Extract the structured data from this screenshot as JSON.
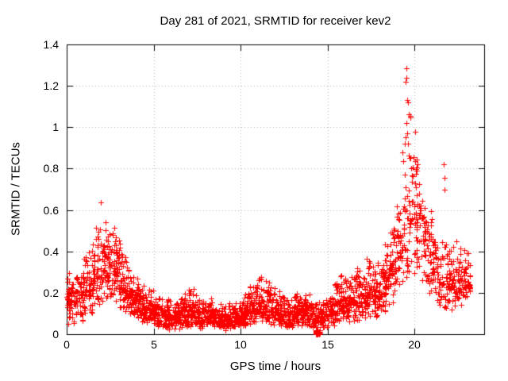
{
  "chart_data": {
    "type": "scatter",
    "title": "Day 281 of 2021, SRMTID for receiver kev2",
    "xlabel": "GPS time / hours",
    "ylabel": "SRMTID / TECUs",
    "xlim": [
      0,
      24
    ],
    "ylim": [
      0,
      1.4
    ],
    "xticks": [
      0,
      5,
      10,
      15,
      20
    ],
    "xtick_labels": [
      "0",
      "5",
      "10",
      "15",
      "20"
    ],
    "yticks": [
      0,
      0.2,
      0.4,
      0.6,
      0.8,
      1.0,
      1.2,
      1.4
    ],
    "ytick_labels": [
      "0",
      "0.2",
      "0.4",
      "0.6",
      "0.8",
      "1",
      "1.2",
      "1.4"
    ],
    "grid": "dotted",
    "legend": "none",
    "marker": "plus",
    "colors": {
      "points": "#ff0000",
      "grid": "#b0b0b0",
      "axis": "#000000",
      "background": "#ffffff"
    },
    "bin_hours": 0.5,
    "data_x_max": 23.2,
    "bins_format": [
      "hour_start",
      "y_min",
      "y_max",
      "num_points"
    ],
    "bins": [
      [
        0.0,
        0.04,
        0.3,
        58
      ],
      [
        0.5,
        0.05,
        0.35,
        58
      ],
      [
        1.0,
        0.08,
        0.42,
        58
      ],
      [
        1.5,
        0.12,
        0.55,
        58
      ],
      [
        2.0,
        0.15,
        0.62,
        60
      ],
      [
        2.5,
        0.15,
        0.57,
        60
      ],
      [
        3.0,
        0.1,
        0.46,
        58
      ],
      [
        3.5,
        0.08,
        0.35,
        58
      ],
      [
        4.0,
        0.06,
        0.28,
        58
      ],
      [
        4.5,
        0.05,
        0.24,
        58
      ],
      [
        5.0,
        0.03,
        0.2,
        58
      ],
      [
        5.5,
        0.02,
        0.18,
        58
      ],
      [
        6.0,
        0.02,
        0.17,
        58
      ],
      [
        6.5,
        0.03,
        0.2,
        58
      ],
      [
        7.0,
        0.03,
        0.24,
        58
      ],
      [
        7.5,
        0.03,
        0.19,
        58
      ],
      [
        8.0,
        0.03,
        0.18,
        58
      ],
      [
        8.5,
        0.02,
        0.16,
        58
      ],
      [
        9.0,
        0.02,
        0.15,
        58
      ],
      [
        9.5,
        0.03,
        0.18,
        58
      ],
      [
        10.0,
        0.04,
        0.2,
        58
      ],
      [
        10.5,
        0.05,
        0.28,
        58
      ],
      [
        11.0,
        0.06,
        0.3,
        58
      ],
      [
        11.5,
        0.04,
        0.27,
        58
      ],
      [
        12.0,
        0.04,
        0.22,
        58
      ],
      [
        12.5,
        0.03,
        0.18,
        58
      ],
      [
        13.0,
        0.04,
        0.22,
        58
      ],
      [
        13.5,
        0.04,
        0.2,
        58
      ],
      [
        14.0,
        0.03,
        0.18,
        54
      ],
      [
        14.5,
        0.02,
        0.16,
        54
      ],
      [
        15.0,
        0.03,
        0.26,
        56
      ],
      [
        15.5,
        0.06,
        0.31,
        56
      ],
      [
        16.0,
        0.05,
        0.28,
        56
      ],
      [
        16.5,
        0.06,
        0.38,
        56
      ],
      [
        17.0,
        0.08,
        0.42,
        56
      ],
      [
        17.5,
        0.06,
        0.36,
        56
      ],
      [
        18.0,
        0.1,
        0.46,
        56
      ],
      [
        18.5,
        0.15,
        0.62,
        54
      ],
      [
        19.0,
        0.2,
        0.78,
        50
      ],
      [
        19.5,
        0.3,
        1.25,
        46
      ],
      [
        20.0,
        0.28,
        0.82,
        50
      ],
      [
        20.5,
        0.2,
        0.72,
        50
      ],
      [
        21.0,
        0.15,
        0.55,
        48
      ],
      [
        21.5,
        0.12,
        0.5,
        46
      ],
      [
        22.0,
        0.1,
        0.45,
        46
      ],
      [
        22.5,
        0.12,
        0.48,
        46
      ],
      [
        23.0,
        0.15,
        0.42,
        20
      ]
    ],
    "outliers": [
      [
        1.97,
        0.637
      ],
      [
        19.55,
        1.285
      ],
      [
        19.52,
        1.24
      ],
      [
        19.5,
        1.22
      ],
      [
        19.56,
        1.13
      ],
      [
        19.6,
        1.12
      ],
      [
        19.53,
        1.02
      ],
      [
        19.58,
        0.97
      ],
      [
        19.5,
        0.95
      ],
      [
        19.62,
        0.92
      ],
      [
        19.3,
        0.88
      ],
      [
        20.15,
        0.82
      ],
      [
        21.68,
        0.82
      ],
      [
        21.7,
        0.755
      ],
      [
        21.72,
        0.7
      ]
    ],
    "zero_cluster": {
      "x_range": [
        14.3,
        14.55
      ],
      "y_range": [
        0.0,
        0.018
      ],
      "count": 35
    },
    "seed": 20211281
  }
}
